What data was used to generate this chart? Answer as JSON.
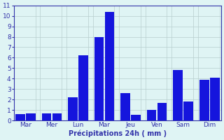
{
  "bar_values": [
    0.6,
    0.65,
    0.7,
    0.65,
    2.2,
    6.2,
    8.0,
    10.4,
    2.6,
    0.55,
    1.0,
    1.7,
    4.8,
    1.85,
    3.9,
    4.1
  ],
  "bar_color": "#1515dd",
  "bg_color": "#dff4f4",
  "grid_color": "#b8cece",
  "axis_color": "#3333aa",
  "tick_color": "#3333aa",
  "xlabel": "Précipitations 24h ( mm )",
  "ylim": [
    0,
    11
  ],
  "yticks": [
    0,
    1,
    2,
    3,
    4,
    5,
    6,
    7,
    8,
    9,
    10,
    11
  ],
  "day_names": [
    "Mar",
    "Mer",
    "Lun",
    "Mar",
    "Jeu",
    "Ven",
    "Sam",
    "Dim"
  ],
  "n_bars": 16,
  "bars_per_group": 2,
  "n_groups": 8
}
